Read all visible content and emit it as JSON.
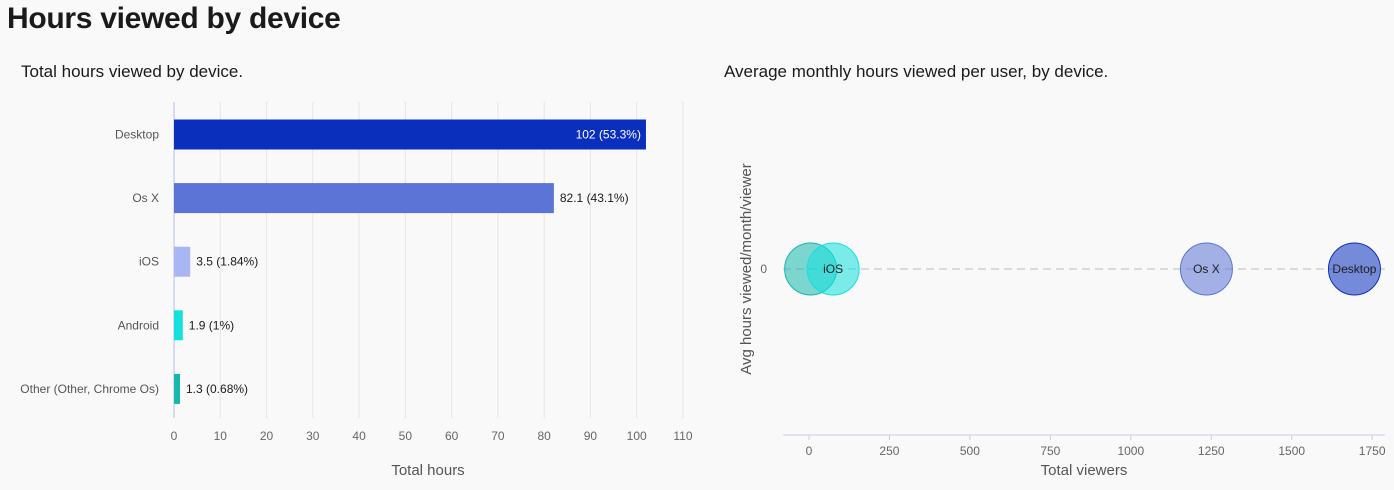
{
  "page": {
    "title": "Hours viewed by device"
  },
  "chart_data": [
    {
      "type": "bar",
      "orientation": "horizontal",
      "title": "Total hours viewed by device.",
      "xlabel": "Total hours",
      "ylabel": "",
      "categories": [
        "Desktop",
        "Os X",
        "iOS",
        "Android",
        "Other (Other, Chrome Os)"
      ],
      "values": [
        102,
        82.1,
        3.5,
        1.9,
        1.3
      ],
      "data_labels": [
        "102 (53.3%)",
        "82.1 (43.1%)",
        "3.5 (1.84%)",
        "1.9 (1%)",
        "1.3 (0.68%)"
      ],
      "colors": [
        "#0a2fbd",
        "#5b74d6",
        "#a9b6f4",
        "#14e0de",
        "#16b8ab"
      ],
      "xlim": [
        0,
        110
      ],
      "xticks": [
        0,
        10,
        20,
        30,
        40,
        50,
        60,
        70,
        80,
        90,
        100,
        110
      ],
      "grid": "vertical"
    },
    {
      "type": "scatter",
      "variant": "bubble",
      "title": "Average monthly hours viewed per user, by device.",
      "xlabel": "Total viewers",
      "ylabel": "Avg hours viewed/month/viewer",
      "xlim": [
        -80,
        1790
      ],
      "xticks": [
        0,
        250,
        500,
        750,
        1000,
        1250,
        1500,
        1750
      ],
      "yticks": [
        0
      ],
      "points": [
        {
          "x": 5,
          "y": 0,
          "label": "",
          "color": "#16b8ab"
        },
        {
          "x": 75,
          "y": 0,
          "label": "iOS",
          "color": "#14e0de"
        },
        {
          "x": 1235,
          "y": 0,
          "label": "Os X",
          "color": "#5b74d6"
        },
        {
          "x": 1695,
          "y": 0,
          "label": "Desktop",
          "color": "#0a2fbd"
        }
      ]
    }
  ]
}
